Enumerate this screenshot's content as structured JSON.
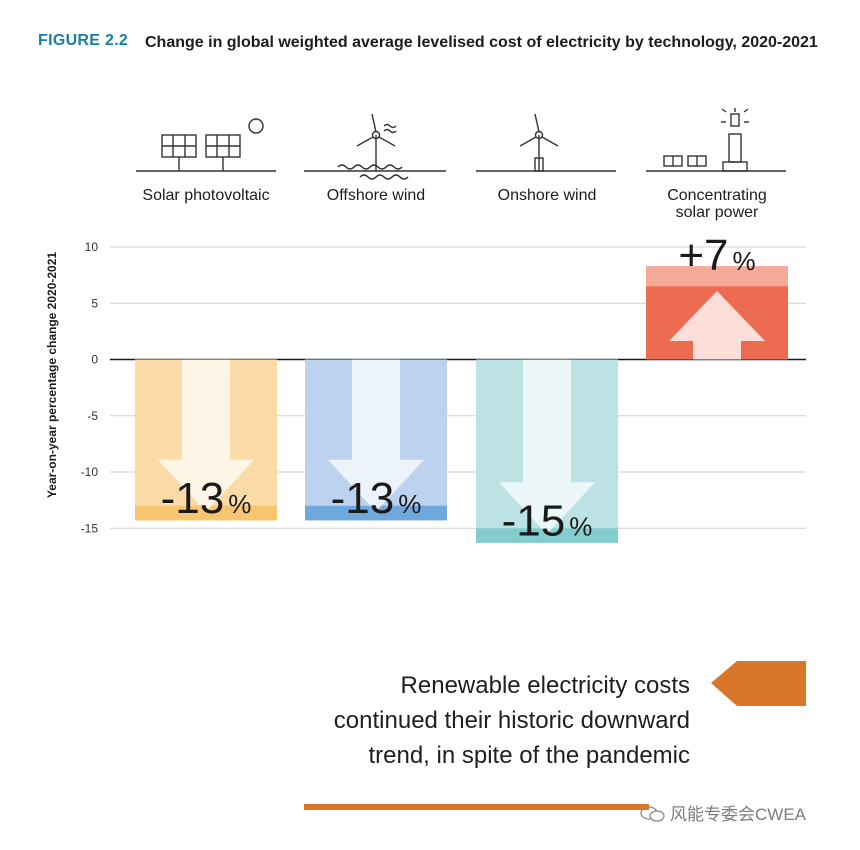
{
  "figure": {
    "label": "FIGURE 2.2",
    "title": "Change in global weighted average levelised cost of electricity by technology, 2020-2021"
  },
  "chart_data": {
    "type": "bar",
    "title": "Change in global weighted average levelised cost of electricity by technology, 2020-2021",
    "ylabel": "Year-on-year percentage change 2020-2021",
    "xlabel": "",
    "ylim": [
      -16.5,
      11
    ],
    "yticks": [
      10,
      5,
      0,
      -5,
      -10,
      -15
    ],
    "ytick_labels": [
      "10",
      "5",
      "0",
      "-5",
      "-10",
      "-15"
    ],
    "grid": true,
    "categories": [
      {
        "lines": [
          "Solar photovoltaic"
        ],
        "icon": "solar-panel-icon"
      },
      {
        "lines": [
          "Offshore wind"
        ],
        "icon": "offshore-wind-turbine-icon"
      },
      {
        "lines": [
          "Onshore wind"
        ],
        "icon": "onshore-wind-turbine-icon"
      },
      {
        "lines": [
          "Concentrating",
          "solar power"
        ],
        "icon": "concentrating-solar-tower-icon"
      }
    ],
    "values": [
      -13,
      -13,
      -15,
      7
    ],
    "data_labels": [
      {
        "number": "-13",
        "unit": "%"
      },
      {
        "number": "-13",
        "unit": "%"
      },
      {
        "number": "-15",
        "unit": "%"
      },
      {
        "number": "+7",
        "unit": "%"
      }
    ],
    "colors": [
      {
        "light": "#fbdca9",
        "dark": "#f9c46e"
      },
      {
        "light": "#bcd2ee",
        "dark": "#6fa8dd"
      },
      {
        "light": "#bce2e4",
        "dark": "#84cdcf"
      },
      {
        "light": "#f4aa97",
        "dark": "#ec6b51"
      }
    ]
  },
  "message": {
    "lines": [
      "Renewable electricity costs",
      "continued their historic downward",
      "trend, in spite of the pandemic"
    ],
    "accent_color": "#d9762a"
  },
  "watermark": "风能专委会CWEA"
}
